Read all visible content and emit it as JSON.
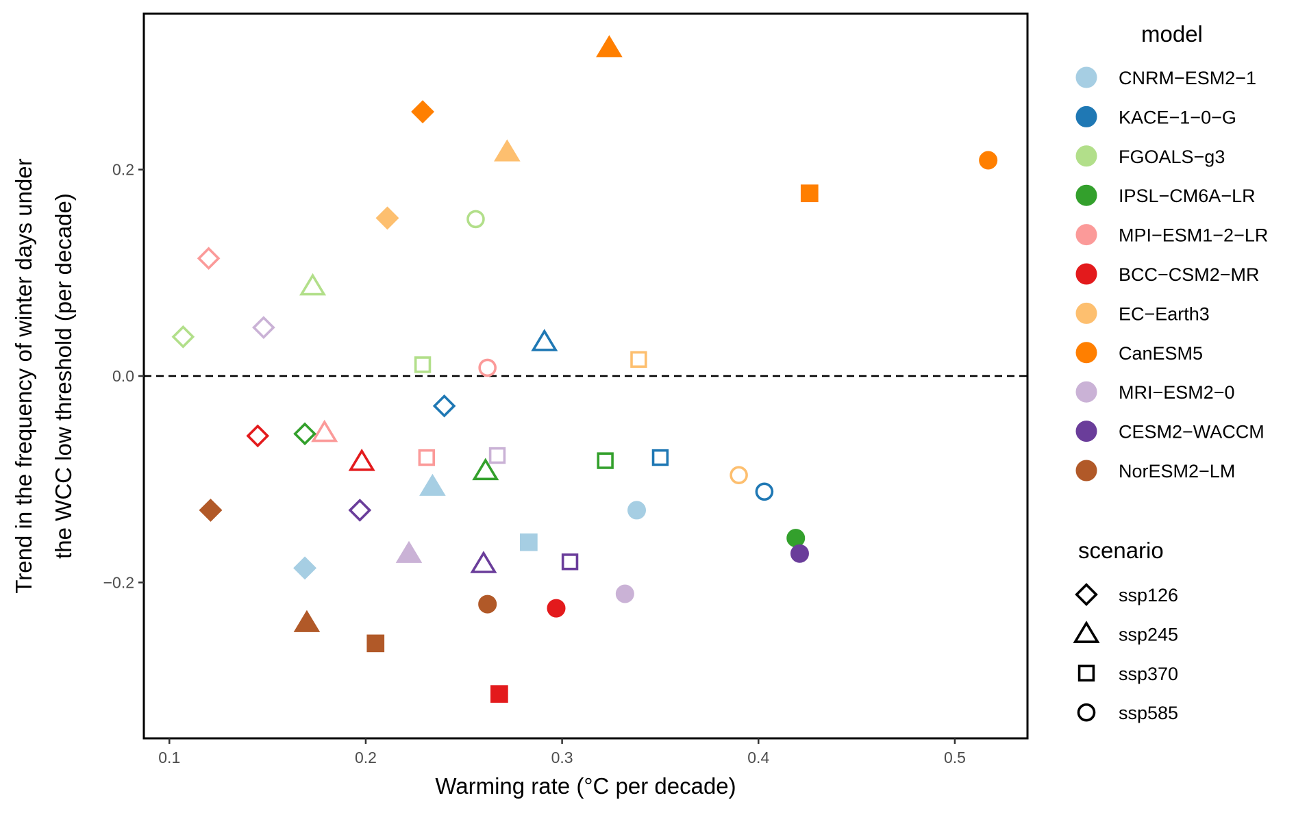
{
  "chart_data": {
    "type": "scatter",
    "xlabel": "Warming rate (°C per decade)",
    "ylabel": [
      "Trend in the frequency of winter days under",
      "the WCC low threshold (per decade)"
    ],
    "xlim": [
      0.087,
      0.537
    ],
    "ylim": [
      -0.351,
      0.351
    ],
    "xticks": [
      "0.1",
      "0.2",
      "0.3",
      "0.4",
      "0.5"
    ],
    "xtick_values": [
      0.1,
      0.2,
      0.3,
      0.4,
      0.5
    ],
    "yticks": [
      "−0.2",
      "0.0",
      "0.2"
    ],
    "ytick_values": [
      -0.2,
      0.0,
      0.2
    ],
    "grid": false,
    "reference_line": {
      "y": 0.0,
      "style": "dashed"
    },
    "legend_placement": "right",
    "legend": {
      "model_title": "model",
      "models": [
        {
          "name": "CNRM-ESM2-1",
          "display": "CNRM−ESM2−1",
          "color": "#A6CEE3"
        },
        {
          "name": "KACE-1-0-G",
          "display": "KACE−1−0−G",
          "color": "#1F78B4"
        },
        {
          "name": "FGOALS-g3",
          "display": "FGOALS−g3",
          "color": "#B2DF8A"
        },
        {
          "name": "IPSL-CM6A-LR",
          "display": "IPSL−CM6A−LR",
          "color": "#33A02C"
        },
        {
          "name": "MPI-ESM1-2-LR",
          "display": "MPI−ESM1−2−LR",
          "color": "#FB9A99"
        },
        {
          "name": "BCC-CSM2-MR",
          "display": "BCC−CSM2−MR",
          "color": "#E31A1C"
        },
        {
          "name": "EC-Earth3",
          "display": "EC−Earth3",
          "color": "#FDBF6F"
        },
        {
          "name": "CanESM5",
          "display": "CanESM5",
          "color": "#FF7F00"
        },
        {
          "name": "MRI-ESM2-0",
          "display": "MRI−ESM2−0",
          "color": "#CAB2D6"
        },
        {
          "name": "CESM2-WACCM",
          "display": "CESM2−WACCM",
          "color": "#6A3D9A"
        },
        {
          "name": "NorESM2-LM",
          "display": "NorESM2−LM",
          "color": "#B15928"
        }
      ],
      "scenario_title": "scenario",
      "scenarios": [
        {
          "name": "ssp126",
          "shape": "diamond"
        },
        {
          "name": "ssp245",
          "shape": "triangle"
        },
        {
          "name": "ssp370",
          "shape": "square"
        },
        {
          "name": "ssp585",
          "shape": "circle"
        }
      ]
    },
    "points": [
      {
        "model": "CanESM5",
        "scenario": "ssp126",
        "x": 0.229,
        "y": 0.256,
        "filled": true
      },
      {
        "model": "CanESM5",
        "scenario": "ssp245",
        "x": 0.324,
        "y": 0.318,
        "filled": true
      },
      {
        "model": "CanESM5",
        "scenario": "ssp370",
        "x": 0.426,
        "y": 0.177,
        "filled": true
      },
      {
        "model": "CanESM5",
        "scenario": "ssp585",
        "x": 0.517,
        "y": 0.209,
        "filled": true
      },
      {
        "model": "EC-Earth3",
        "scenario": "ssp126",
        "x": 0.211,
        "y": 0.153,
        "filled": true
      },
      {
        "model": "EC-Earth3",
        "scenario": "ssp245",
        "x": 0.272,
        "y": 0.217,
        "filled": true
      },
      {
        "model": "EC-Earth3",
        "scenario": "ssp370",
        "x": 0.339,
        "y": 0.016,
        "filled": false
      },
      {
        "model": "EC-Earth3",
        "scenario": "ssp585",
        "x": 0.39,
        "y": -0.096,
        "filled": false
      },
      {
        "model": "FGOALS-g3",
        "scenario": "ssp126",
        "x": 0.107,
        "y": 0.038,
        "filled": false
      },
      {
        "model": "FGOALS-g3",
        "scenario": "ssp245",
        "x": 0.173,
        "y": 0.087,
        "filled": false
      },
      {
        "model": "FGOALS-g3",
        "scenario": "ssp370",
        "x": 0.229,
        "y": 0.011,
        "filled": false
      },
      {
        "model": "FGOALS-g3",
        "scenario": "ssp585",
        "x": 0.256,
        "y": 0.152,
        "filled": false
      },
      {
        "model": "MPI-ESM1-2-LR",
        "scenario": "ssp126",
        "x": 0.12,
        "y": 0.114,
        "filled": false
      },
      {
        "model": "MPI-ESM1-2-LR",
        "scenario": "ssp245",
        "x": 0.179,
        "y": -0.055,
        "filled": false
      },
      {
        "model": "MPI-ESM1-2-LR",
        "scenario": "ssp370",
        "x": 0.231,
        "y": -0.079,
        "filled": false
      },
      {
        "model": "MPI-ESM1-2-LR",
        "scenario": "ssp585",
        "x": 0.262,
        "y": 0.008,
        "filled": false
      },
      {
        "model": "MRI-ESM2-0",
        "scenario": "ssp126",
        "x": 0.148,
        "y": 0.047,
        "filled": false
      },
      {
        "model": "MRI-ESM2-0",
        "scenario": "ssp245",
        "x": 0.222,
        "y": -0.172,
        "filled": true
      },
      {
        "model": "MRI-ESM2-0",
        "scenario": "ssp370",
        "x": 0.267,
        "y": -0.077,
        "filled": false
      },
      {
        "model": "MRI-ESM2-0",
        "scenario": "ssp585",
        "x": 0.332,
        "y": -0.211,
        "filled": true
      },
      {
        "model": "KACE-1-0-G",
        "scenario": "ssp126",
        "x": 0.24,
        "y": -0.029,
        "filled": false
      },
      {
        "model": "KACE-1-0-G",
        "scenario": "ssp245",
        "x": 0.291,
        "y": 0.033,
        "filled": false
      },
      {
        "model": "KACE-1-0-G",
        "scenario": "ssp370",
        "x": 0.35,
        "y": -0.079,
        "filled": false
      },
      {
        "model": "KACE-1-0-G",
        "scenario": "ssp585",
        "x": 0.403,
        "y": -0.112,
        "filled": false
      },
      {
        "model": "BCC-CSM2-MR",
        "scenario": "ssp126",
        "x": 0.145,
        "y": -0.058,
        "filled": false
      },
      {
        "model": "BCC-CSM2-MR",
        "scenario": "ssp245",
        "x": 0.198,
        "y": -0.083,
        "filled": false
      },
      {
        "model": "BCC-CSM2-MR",
        "scenario": "ssp370",
        "x": 0.268,
        "y": -0.308,
        "filled": true
      },
      {
        "model": "BCC-CSM2-MR",
        "scenario": "ssp585",
        "x": 0.297,
        "y": -0.225,
        "filled": true
      },
      {
        "model": "IPSL-CM6A-LR",
        "scenario": "ssp126",
        "x": 0.169,
        "y": -0.056,
        "filled": false
      },
      {
        "model": "IPSL-CM6A-LR",
        "scenario": "ssp245",
        "x": 0.261,
        "y": -0.092,
        "filled": false
      },
      {
        "model": "IPSL-CM6A-LR",
        "scenario": "ssp370",
        "x": 0.322,
        "y": -0.082,
        "filled": false
      },
      {
        "model": "IPSL-CM6A-LR",
        "scenario": "ssp585",
        "x": 0.419,
        "y": -0.157,
        "filled": true
      },
      {
        "model": "CNRM-ESM2-1",
        "scenario": "ssp126",
        "x": 0.169,
        "y": -0.186,
        "filled": true
      },
      {
        "model": "CNRM-ESM2-1",
        "scenario": "ssp245",
        "x": 0.234,
        "y": -0.107,
        "filled": true
      },
      {
        "model": "CNRM-ESM2-1",
        "scenario": "ssp370",
        "x": 0.283,
        "y": -0.161,
        "filled": true
      },
      {
        "model": "CNRM-ESM2-1",
        "scenario": "ssp585",
        "x": 0.338,
        "y": -0.13,
        "filled": true
      },
      {
        "model": "CESM2-WACCM",
        "scenario": "ssp126",
        "x": 0.197,
        "y": -0.13,
        "filled": false
      },
      {
        "model": "CESM2-WACCM",
        "scenario": "ssp245",
        "x": 0.26,
        "y": -0.182,
        "filled": false
      },
      {
        "model": "CESM2-WACCM",
        "scenario": "ssp370",
        "x": 0.304,
        "y": -0.18,
        "filled": false
      },
      {
        "model": "CESM2-WACCM",
        "scenario": "ssp585",
        "x": 0.421,
        "y": -0.172,
        "filled": true
      },
      {
        "model": "NorESM2-LM",
        "scenario": "ssp126",
        "x": 0.121,
        "y": -0.13,
        "filled": true
      },
      {
        "model": "NorESM2-LM",
        "scenario": "ssp245",
        "x": 0.17,
        "y": -0.239,
        "filled": true
      },
      {
        "model": "NorESM2-LM",
        "scenario": "ssp370",
        "x": 0.205,
        "y": -0.259,
        "filled": true
      },
      {
        "model": "NorESM2-LM",
        "scenario": "ssp585",
        "x": 0.262,
        "y": -0.221,
        "filled": true
      }
    ]
  }
}
